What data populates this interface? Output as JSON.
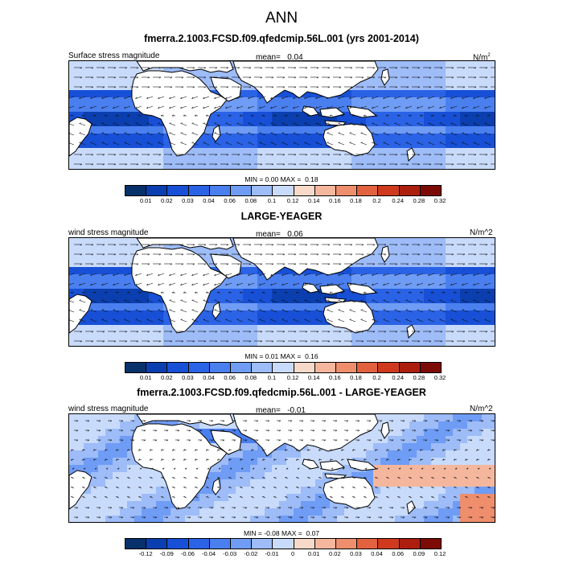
{
  "title": "ANN",
  "panels": [
    {
      "title": "fmerra.2.1003.FCSD.f09.qfedcmip.56L.001 (yrs 2001-2014)",
      "left_label": "Surface stress magnitude",
      "mean_label": "mean=",
      "mean_value": "0.04",
      "units": "N/m",
      "units_sup": "2",
      "min_label": "MIN =",
      "min_value": "0.00",
      "max_label": "MAX =",
      "max_value": "0.18",
      "field": "mag",
      "level_scale": [
        0.01,
        0.02,
        0.03,
        0.04,
        0.06,
        0.08,
        0.1,
        0.12,
        0.14,
        0.16,
        0.18,
        0.2,
        0.24,
        0.28,
        0.32
      ],
      "colorbar_ticks": [
        "0.01",
        "0.02",
        "0.03",
        "0.04",
        "0.06",
        "0.08",
        "0.1",
        "0.12",
        "0.14",
        "0.16",
        "0.18",
        "0.2",
        "0.24",
        "0.28",
        "0.32"
      ]
    },
    {
      "title": "LARGE-YEAGER",
      "left_label": "wind stress magnitude",
      "mean_label": "mean=",
      "mean_value": "0.06",
      "units": "N/m^2",
      "units_sup": "",
      "min_label": "MIN =",
      "min_value": "0.01",
      "max_label": "MAX =",
      "max_value": "0.16",
      "field": "mag",
      "level_scale": [
        0.01,
        0.02,
        0.03,
        0.04,
        0.06,
        0.08,
        0.1,
        0.12,
        0.14,
        0.16,
        0.18,
        0.2,
        0.24,
        0.28,
        0.32
      ],
      "colorbar_ticks": [
        "0.01",
        "0.02",
        "0.03",
        "0.04",
        "0.06",
        "0.08",
        "0.1",
        "0.12",
        "0.14",
        "0.16",
        "0.18",
        "0.2",
        "0.24",
        "0.28",
        "0.32"
      ]
    },
    {
      "title": "fmerra.2.1003.FCSD.f09.qfedcmip.56L.001 - LARGE-YEAGER",
      "left_label": "wind stress magnitude",
      "mean_label": "mean=",
      "mean_value": "-0.01",
      "units": "N/m^2",
      "units_sup": "",
      "min_label": "MIN =",
      "min_value": "-0.08",
      "max_label": "MAX =",
      "max_value": "0.07",
      "field": "diff",
      "level_scale": [
        -0.12,
        -0.09,
        -0.06,
        -0.04,
        -0.03,
        -0.02,
        -0.01,
        0,
        0.01,
        0.02,
        0.03,
        0.04,
        0.06,
        0.09,
        0.12
      ],
      "colorbar_ticks": [
        "-0.12",
        "-0.09",
        "-0.06",
        "-0.04",
        "-0.03",
        "-0.02",
        "-0.01",
        "0",
        "0.01",
        "0.02",
        "0.03",
        "0.04",
        "0.06",
        "0.09",
        "0.12"
      ]
    }
  ],
  "colormap": [
    "#08306b",
    "#0b3fb0",
    "#1750d6",
    "#2b63e6",
    "#4a7fef",
    "#6f9cf5",
    "#9dbcf8",
    "#c9dbfb",
    "#f6d9c9",
    "#f4b79e",
    "#ee8e6c",
    "#e2613f",
    "#cf3a1f",
    "#ac1f0f",
    "#7c0b05"
  ],
  "ocean_color": "#1d55d9",
  "land_color": "#ffffff"
}
